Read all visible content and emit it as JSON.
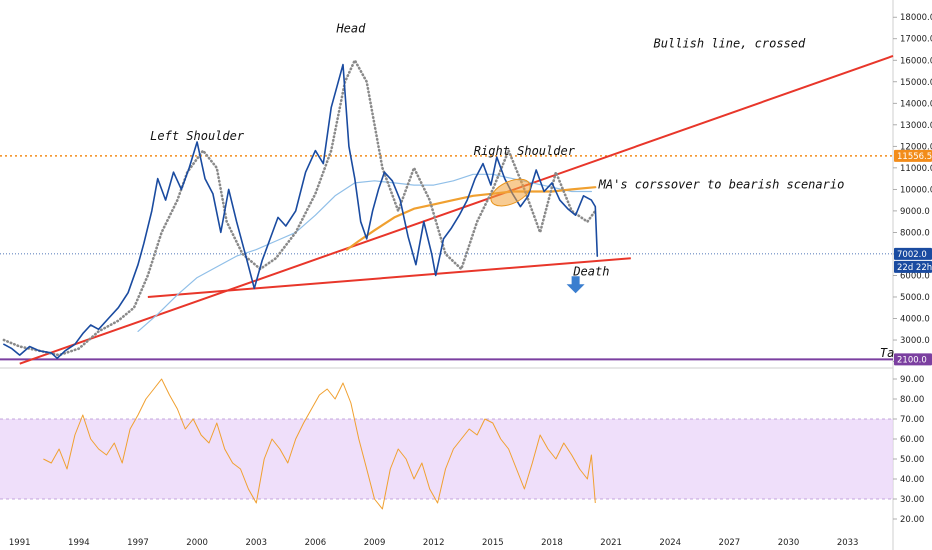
{
  "chart_data": [
    {
      "type": "line",
      "panel": "price",
      "title": "",
      "xlabel": "",
      "ylabel": "",
      "xlim": [
        1990.0,
        2035.3
      ],
      "ylim": [
        1700,
        18800
      ],
      "yscale": "linear",
      "grid": false,
      "yticks": [
        "18000.0",
        "17000.0",
        "16000.0",
        "15000.0",
        "14000.0",
        "13000.0",
        "12000.0",
        "11000.0",
        "10000.0",
        "9000.0",
        "8000.0",
        "7000.0",
        "6000.0",
        "5000.0",
        "4000.0",
        "3000.0",
        "2000.0"
      ],
      "ytick_values": [
        18000,
        17000,
        16000,
        15000,
        14000,
        13000,
        12000,
        11000,
        10000,
        9000,
        8000,
        7000,
        6000,
        5000,
        4000,
        3000,
        2000
      ],
      "xticks": [
        "1991",
        "1994",
        "1997",
        "2000",
        "2003",
        "2006",
        "2009",
        "2012",
        "2015",
        "2018",
        "2021",
        "2024",
        "2027",
        "2030",
        "2033"
      ],
      "xtick_values": [
        1991,
        1994,
        1997,
        2000,
        2003,
        2006,
        2009,
        2012,
        2015,
        2018,
        2021,
        2024,
        2027,
        2030,
        2033
      ],
      "series": [
        {
          "role": "price",
          "color": "#1a4ba0",
          "x": [
            1990.2,
            1990.6,
            1991.0,
            1991.5,
            1992.0,
            1992.6,
            1992.9,
            1993.3,
            1993.8,
            1994.2,
            1994.6,
            1995.0,
            1995.5,
            1996.0,
            1996.5,
            1997.0,
            1997.3,
            1997.7,
            1998.0,
            1998.4,
            1998.8,
            1999.2,
            1999.6,
            2000.0,
            2000.4,
            2000.8,
            2001.2,
            2001.6,
            2002.0,
            2002.5,
            2002.9,
            2003.3,
            2003.7,
            2004.1,
            2004.5,
            2005.0,
            2005.5,
            2006.0,
            2006.4,
            2006.8,
            2007.1,
            2007.4,
            2007.7,
            2008.0,
            2008.3,
            2008.6,
            2008.9,
            2009.2,
            2009.5,
            2009.9,
            2010.3,
            2010.7,
            2011.1,
            2011.5,
            2011.9,
            2012.1,
            2012.5,
            2012.9,
            2013.3,
            2013.7,
            2014.1,
            2014.5,
            2014.9,
            2015.2,
            2015.6,
            2016.0,
            2016.4,
            2016.8,
            2017.2,
            2017.6,
            2018.0,
            2018.4,
            2018.8,
            2019.2,
            2019.6,
            2020.0,
            2020.2,
            2020.3
          ],
          "y": [
            2800,
            2600,
            2300,
            2700,
            2500,
            2400,
            2150,
            2500,
            2800,
            3300,
            3700,
            3500,
            4000,
            4500,
            5200,
            6500,
            7500,
            9000,
            10500,
            9500,
            10800,
            10000,
            11000,
            12200,
            10500,
            9800,
            8000,
            10000,
            8500,
            6800,
            5400,
            6700,
            7700,
            8700,
            8300,
            9000,
            10800,
            11800,
            11200,
            13800,
            14800,
            15800,
            12000,
            10500,
            8500,
            7700,
            9000,
            10000,
            10800,
            10400,
            9500,
            7800,
            6500,
            8500,
            7000,
            6000,
            7700,
            8200,
            8800,
            9500,
            10500,
            11200,
            10200,
            11500,
            10500,
            9800,
            9200,
            9700,
            10900,
            9900,
            10300,
            9500,
            9100,
            8800,
            9700,
            9500,
            9200,
            6900
          ]
        },
        {
          "role": "moving-average-long",
          "color": "#90bfe8",
          "x": [
            1997.0,
            1998.0,
            1999.0,
            2000.0,
            2001.0,
            2002.0,
            2003.0,
            2004.0,
            2005.0,
            2006.0,
            2007.0,
            2008.0,
            2009.0,
            2010.0,
            2011.0,
            2012.0,
            2013.0,
            2014.0,
            2015.0,
            2016.0,
            2017.0,
            2018.0,
            2019.0,
            2020.0
          ],
          "y": [
            3400,
            4200,
            5100,
            5900,
            6400,
            6900,
            7200,
            7600,
            8000,
            8800,
            9700,
            10300,
            10400,
            10300,
            10200,
            10200,
            10400,
            10700,
            10700,
            10500,
            10300,
            10100,
            9900,
            9900
          ]
        },
        {
          "role": "moving-average-mid",
          "color": "#f0a030",
          "x": [
            2007.6,
            2008.2,
            2009.0,
            2010.0,
            2011.0,
            2012.0,
            2013.0,
            2014.0,
            2015.0,
            2016.0,
            2017.0,
            2018.0,
            2019.0,
            2020.2
          ],
          "y": [
            7200,
            7600,
            8100,
            8700,
            9100,
            9300,
            9500,
            9700,
            9800,
            9900,
            9900,
            9900,
            10000,
            10100
          ]
        },
        {
          "role": "moving-average-dotted",
          "color": "#8a8a8a",
          "x": [
            1990.2,
            1991.0,
            1992.0,
            1993.0,
            1994.0,
            1995.0,
            1996.0,
            1996.8,
            1997.5,
            1998.2,
            1999.0,
            1999.5,
            2000.3,
            2001.0,
            2001.5,
            2002.3,
            2003.2,
            2004.0,
            2005.0,
            2006.0,
            2006.8,
            2007.5,
            2008.0,
            2008.6,
            2009.4,
            2010.2,
            2011.0,
            2011.8,
            2012.6,
            2013.4,
            2014.2,
            2015.0,
            2015.8,
            2016.6,
            2017.4,
            2018.2,
            2019.0,
            2019.8,
            2020.2
          ],
          "y": [
            3000,
            2700,
            2500,
            2300,
            2600,
            3400,
            3900,
            4500,
            6000,
            8000,
            9500,
            10800,
            11800,
            11000,
            8500,
            7000,
            6300,
            6800,
            8000,
            9800,
            11800,
            15000,
            16000,
            15000,
            11000,
            9000,
            11000,
            9500,
            7000,
            6300,
            8500,
            10000,
            11800,
            10000,
            8000,
            10800,
            9000,
            8500,
            9000
          ]
        }
      ],
      "reference_lines": [
        {
          "label": "11556.5",
          "value": 11556.5,
          "style": "dotted",
          "color": "#f28c1a"
        },
        {
          "label": "7002.0",
          "value": 7002.0,
          "style": "dotted",
          "color": "#1a4ba0"
        },
        {
          "label": "2100.0",
          "value": 2100.0,
          "style": "solid",
          "color": "#7b3fa0"
        }
      ],
      "trend_lines": [
        {
          "role": "bullish-line",
          "color": "#e8362a",
          "from": [
            1991.0,
            1900
          ],
          "to": [
            2035.3,
            16200
          ]
        },
        {
          "role": "neckline",
          "color": "#e8362a",
          "from": [
            1997.5,
            5000
          ],
          "to": [
            2022.0,
            6800
          ]
        }
      ],
      "price_axis_badges": [
        {
          "text": "11556.5",
          "value": 11556.5,
          "bg": "#f28c1a",
          "fg": "#ffffff"
        },
        {
          "text": "7002.0",
          "value": 7002.0,
          "bg": "#1a4ba0",
          "fg": "#ffffff"
        },
        {
          "text": "22d 22h",
          "value": 6400,
          "bg": "#1a4ba0",
          "fg": "#ffffff"
        },
        {
          "text": "2100.0",
          "value": 2100.0,
          "bg": "#7b3fa0",
          "fg": "#ffffff"
        }
      ],
      "annotations": [
        {
          "text": "Head",
          "x": 2007.8,
          "y": 17300
        },
        {
          "text": "Left Shoulder",
          "x": 2000.0,
          "y": 12300
        },
        {
          "text": "Right Shoulder",
          "x": 2016.6,
          "y": 11600
        },
        {
          "text": "Bullish line, crossed",
          "x": 2027.0,
          "y": 16600
        },
        {
          "text": "MA's corssover to bearish scenario",
          "x": 2026.6,
          "y": 10050
        },
        {
          "text": "Death",
          "x": 2020.0,
          "y": 6000
        },
        {
          "text": "Ta",
          "x": 2035.0,
          "y": 2200
        }
      ],
      "markers": [
        {
          "kind": "ellipse-highlight",
          "x": 2015.9,
          "y": 9850,
          "color": "#f2a33a"
        },
        {
          "kind": "down-arrow",
          "x": 2019.2,
          "y": 5500,
          "color": "#3a7ecf"
        }
      ]
    },
    {
      "type": "line",
      "panel": "rsi",
      "title": "",
      "xlim": [
        1990.0,
        2035.3
      ],
      "ylim": [
        19.5,
        95.5
      ],
      "yticks": [
        "90.00",
        "80.00",
        "70.00",
        "60.00",
        "50.00",
        "40.00",
        "30.00",
        "20.00"
      ],
      "ytick_values": [
        90,
        80,
        70,
        60,
        50,
        40,
        30,
        20
      ],
      "band": [
        30,
        70
      ],
      "band_color": "#ead4f8",
      "series": [
        {
          "role": "rsi",
          "color": "#f0a030",
          "x": [
            1992.2,
            1992.6,
            1993.0,
            1993.4,
            1993.8,
            1994.2,
            1994.6,
            1995.0,
            1995.4,
            1995.8,
            1996.2,
            1996.6,
            1997.0,
            1997.4,
            1997.8,
            1998.2,
            1998.6,
            1999.0,
            1999.4,
            1999.8,
            2000.2,
            2000.6,
            2001.0,
            2001.4,
            2001.8,
            2002.2,
            2002.6,
            2003.0,
            2003.4,
            2003.8,
            2004.2,
            2004.6,
            2005.0,
            2005.4,
            2005.8,
            2006.2,
            2006.6,
            2007.0,
            2007.4,
            2007.8,
            2008.2,
            2008.6,
            2009.0,
            2009.4,
            2009.8,
            2010.2,
            2010.6,
            2011.0,
            2011.4,
            2011.8,
            2012.2,
            2012.6,
            2013.0,
            2013.4,
            2013.8,
            2014.2,
            2014.6,
            2015.0,
            2015.4,
            2015.8,
            2016.2,
            2016.6,
            2017.0,
            2017.4,
            2017.8,
            2018.2,
            2018.6,
            2019.0,
            2019.4,
            2019.8,
            2020.0,
            2020.2
          ],
          "y": [
            50,
            48,
            55,
            45,
            62,
            72,
            60,
            55,
            52,
            58,
            48,
            65,
            72,
            80,
            85,
            90,
            82,
            75,
            65,
            70,
            62,
            58,
            68,
            55,
            48,
            45,
            35,
            28,
            50,
            60,
            55,
            48,
            60,
            68,
            75,
            82,
            85,
            80,
            88,
            78,
            60,
            45,
            30,
            25,
            45,
            55,
            50,
            40,
            48,
            35,
            28,
            45,
            55,
            60,
            65,
            62,
            70,
            68,
            60,
            55,
            45,
            35,
            48,
            62,
            55,
            50,
            58,
            52,
            45,
            40,
            52,
            28
          ]
        }
      ]
    }
  ]
}
